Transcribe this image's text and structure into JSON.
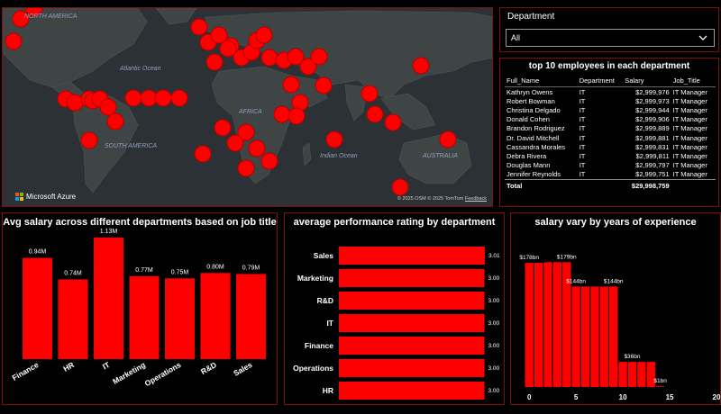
{
  "map": {
    "labels": {
      "north_america": "NORTH AMERICA",
      "south_america": "SOUTH AMERICA",
      "africa": "AFRICA",
      "australia": "AUSTRALIA",
      "atlantic": "Atlantic Ocean",
      "indian": "Indian Ocean"
    },
    "brand": "Microsoft Azure",
    "credits": "© 2025 OSM  © 2025 TomTom",
    "feedback": "Feedback",
    "marker_color": "#ff0000"
  },
  "slicer": {
    "title": "Department",
    "value": "All"
  },
  "table": {
    "title": "top 10 employees in each department",
    "columns": [
      "Full_Name",
      "Department",
      "Salary",
      "Job_Title"
    ],
    "rows": [
      [
        "Kathryn Owens",
        "IT",
        "$2,999,976",
        "IT Manager"
      ],
      [
        "Robert Bowman",
        "IT",
        "$2,999,973",
        "IT Manager"
      ],
      [
        "Christina Delgado",
        "IT",
        "$2,999,944",
        "IT Manager"
      ],
      [
        "Donald Cohen",
        "IT",
        "$2,999,906",
        "IT Manager"
      ],
      [
        "Brandon Rodriguez",
        "IT",
        "$2,999,889",
        "IT Manager"
      ],
      [
        "Dr. David Mitchell",
        "IT",
        "$2,999,881",
        "IT Manager"
      ],
      [
        "Cassandra Morales",
        "IT",
        "$2,999,831",
        "IT Manager"
      ],
      [
        "Debra Rivera",
        "IT",
        "$2,999,811",
        "IT Manager"
      ],
      [
        "Douglas Mann",
        "IT",
        "$2,999,797",
        "IT Manager"
      ],
      [
        "Jennifer Reynolds",
        "IT",
        "$2,999,751",
        "IT Manager"
      ]
    ],
    "total_label": "Total",
    "total_value": "$29,998,759"
  },
  "chart_data": [
    {
      "type": "bar",
      "title": "Avg salary across different departments based on job title",
      "categories": [
        "Finance",
        "HR",
        "IT",
        "Marketing",
        "Operations",
        "R&D",
        "Sales"
      ],
      "values": [
        0.94,
        0.74,
        1.13,
        0.77,
        0.75,
        0.8,
        0.79
      ],
      "labels": [
        "0.94M",
        "0.74M",
        "1.13M",
        "0.77M",
        "0.75M",
        "0.80M",
        "0.79M"
      ],
      "ylim": [
        0,
        1.2
      ],
      "color": "#ff0000"
    },
    {
      "type": "bar",
      "orientation": "horizontal",
      "title": "average performance rating by department",
      "categories": [
        "Sales",
        "Marketing",
        "R&D",
        "IT",
        "Finance",
        "Operations",
        "HR"
      ],
      "values": [
        3.01,
        3.0,
        3.0,
        3.0,
        3.0,
        3.0,
        3.0
      ],
      "labels": [
        "3.01",
        "3.00",
        "3.00",
        "3.00",
        "3.00",
        "3.00",
        "3.00"
      ],
      "color": "#ff0000"
    },
    {
      "type": "bar",
      "title": "salary vary by years of experience",
      "x": [
        0,
        1,
        2,
        3,
        4,
        5,
        6,
        7,
        8,
        9,
        10,
        11,
        12,
        13,
        14
      ],
      "values": [
        178,
        178,
        179,
        179,
        179,
        144,
        144,
        144,
        144,
        144,
        36,
        36,
        36,
        36,
        1
      ],
      "data_labels": [
        {
          "x": 0,
          "text": "$178bn"
        },
        {
          "x": 4,
          "text": "$179bn"
        },
        {
          "x": 5,
          "text": "$144bn"
        },
        {
          "x": 9,
          "text": "$144bn"
        },
        {
          "x": 11,
          "text": "$36bn"
        },
        {
          "x": 14,
          "text": "$1bn"
        }
      ],
      "xticks": [
        0,
        5,
        10,
        15,
        20
      ],
      "xlim": [
        -0.5,
        20
      ],
      "ylim": [
        0,
        200
      ],
      "color": "#ff0000"
    }
  ]
}
